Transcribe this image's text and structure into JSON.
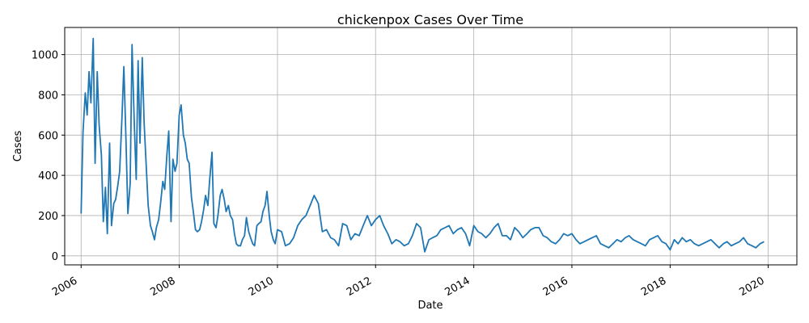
{
  "chart_data": {
    "type": "line",
    "title": "chickenpox Cases Over Time",
    "xlabel": "Date",
    "ylabel": "Cases",
    "xlim": [
      "2005-09-01",
      "2020-08-01"
    ],
    "ylim": [
      -45,
      1135
    ],
    "x_ticks": [
      "2006-01-01",
      "2008-01-01",
      "2010-01-01",
      "2012-01-01",
      "2014-01-01",
      "2016-01-01",
      "2018-01-01",
      "2020-01-01"
    ],
    "x_tick_labels": [
      "2006",
      "2008",
      "2010",
      "2012",
      "2014",
      "2016",
      "2018",
      "2020"
    ],
    "y_ticks": [
      0,
      200,
      400,
      600,
      800,
      1000
    ],
    "y_tick_labels": [
      "0",
      "200",
      "400",
      "600",
      "800",
      "1000"
    ],
    "grid": true,
    "line_color": "#1f77b4",
    "series": [
      {
        "x": [
          "2006-01-01",
          "2006-01-15",
          "2006-02-01",
          "2006-02-15",
          "2006-03-01",
          "2006-03-15",
          "2006-04-01",
          "2006-04-15",
          "2006-05-01",
          "2006-05-15",
          "2006-06-01",
          "2006-06-15",
          "2006-07-01",
          "2006-07-15",
          "2006-08-01",
          "2006-08-15",
          "2006-09-01",
          "2006-09-15",
          "2006-10-01",
          "2006-10-15",
          "2006-11-01",
          "2006-11-15",
          "2006-12-01",
          "2006-12-15",
          "2007-01-01",
          "2007-01-15",
          "2007-02-01",
          "2007-02-15",
          "2007-03-01",
          "2007-03-15",
          "2007-04-01",
          "2007-04-15",
          "2007-05-01",
          "2007-05-15",
          "2007-06-01",
          "2007-06-15",
          "2007-07-01",
          "2007-07-15",
          "2007-08-01",
          "2007-08-15",
          "2007-09-01",
          "2007-09-15",
          "2007-10-01",
          "2007-10-15",
          "2007-11-01",
          "2007-11-15",
          "2007-12-01",
          "2007-12-15",
          "2008-01-01",
          "2008-01-15",
          "2008-02-01",
          "2008-02-15",
          "2008-03-01",
          "2008-03-15",
          "2008-04-01",
          "2008-04-15",
          "2008-05-01",
          "2008-05-15",
          "2008-06-01",
          "2008-06-15",
          "2008-07-01",
          "2008-07-15",
          "2008-08-01",
          "2008-08-15",
          "2008-09-01",
          "2008-09-15",
          "2008-10-01",
          "2008-10-15",
          "2008-11-01",
          "2008-11-15",
          "2008-12-01",
          "2008-12-15",
          "2009-01-01",
          "2009-01-15",
          "2009-02-01",
          "2009-02-15",
          "2009-03-01",
          "2009-03-15",
          "2009-04-01",
          "2009-04-15",
          "2009-05-01",
          "2009-05-15",
          "2009-06-01",
          "2009-06-15",
          "2009-07-01",
          "2009-07-15",
          "2009-08-01",
          "2009-08-15",
          "2009-09-01",
          "2009-09-15",
          "2009-10-01",
          "2009-10-15",
          "2009-11-01",
          "2009-11-15",
          "2009-12-01",
          "2009-12-15",
          "2010-01-01",
          "2010-02-01",
          "2010-03-01",
          "2010-04-01",
          "2010-05-01",
          "2010-06-01",
          "2010-07-01",
          "2010-08-01",
          "2010-09-01",
          "2010-10-01",
          "2010-11-01",
          "2010-12-01",
          "2011-01-01",
          "2011-02-01",
          "2011-03-01",
          "2011-04-01",
          "2011-05-01",
          "2011-06-01",
          "2011-07-01",
          "2011-08-01",
          "2011-09-01",
          "2011-10-01",
          "2011-11-01",
          "2011-12-01",
          "2012-01-01",
          "2012-02-01",
          "2012-03-01",
          "2012-04-01",
          "2012-05-01",
          "2012-06-01",
          "2012-07-01",
          "2012-08-01",
          "2012-09-01",
          "2012-10-01",
          "2012-11-01",
          "2012-12-01",
          "2013-01-01",
          "2013-02-01",
          "2013-03-01",
          "2013-04-01",
          "2013-05-01",
          "2013-06-01",
          "2013-07-01",
          "2013-08-01",
          "2013-09-01",
          "2013-10-01",
          "2013-11-01",
          "2013-12-01",
          "2014-01-01",
          "2014-02-01",
          "2014-03-01",
          "2014-04-01",
          "2014-05-01",
          "2014-06-01",
          "2014-07-01",
          "2014-08-01",
          "2014-09-01",
          "2014-10-01",
          "2014-11-01",
          "2014-12-01",
          "2015-01-01",
          "2015-02-01",
          "2015-03-01",
          "2015-04-01",
          "2015-05-01",
          "2015-06-01",
          "2015-07-01",
          "2015-08-01",
          "2015-09-01",
          "2015-10-01",
          "2015-11-01",
          "2015-12-01",
          "2016-01-01",
          "2016-02-01",
          "2016-03-01",
          "2016-04-01",
          "2016-05-01",
          "2016-06-01",
          "2016-07-01",
          "2016-08-01",
          "2016-09-01",
          "2016-10-01",
          "2016-11-01",
          "2016-12-01",
          "2017-01-01",
          "2017-02-01",
          "2017-03-01",
          "2017-04-01",
          "2017-05-01",
          "2017-06-01",
          "2017-07-01",
          "2017-08-01",
          "2017-09-01",
          "2017-10-01",
          "2017-11-01",
          "2017-12-01",
          "2018-01-01",
          "2018-02-01",
          "2018-03-01",
          "2018-04-01",
          "2018-05-01",
          "2018-06-01",
          "2018-07-01",
          "2018-08-01",
          "2018-09-01",
          "2018-10-01",
          "2018-11-01",
          "2018-12-01",
          "2019-01-01",
          "2019-02-01",
          "2019-03-01",
          "2019-04-01",
          "2019-05-01",
          "2019-06-01",
          "2019-07-01",
          "2019-08-01",
          "2019-09-01",
          "2019-10-01",
          "2019-11-01",
          "2019-12-01"
        ],
        "y": [
          210,
          615,
          810,
          700,
          915,
          760,
          1080,
          460,
          915,
          650,
          500,
          170,
          340,
          110,
          560,
          150,
          260,
          280,
          350,
          420,
          690,
          940,
          570,
          210,
          360,
          1050,
          650,
          380,
          970,
          560,
          985,
          660,
          440,
          250,
          150,
          120,
          80,
          140,
          180,
          260,
          370,
          330,
          500,
          620,
          170,
          480,
          420,
          460,
          700,
          750,
          600,
          560,
          480,
          460,
          290,
          220,
          130,
          120,
          130,
          170,
          230,
          300,
          250,
          380,
          515,
          160,
          140,
          200,
          300,
          330,
          280,
          220,
          250,
          200,
          180,
          110,
          60,
          50,
          50,
          80,
          100,
          190,
          120,
          90,
          60,
          50,
          150,
          160,
          170,
          220,
          250,
          320,
          200,
          120,
          80,
          60,
          130,
          120,
          50,
          60,
          90,
          150,
          180,
          200,
          250,
          300,
          260,
          120,
          130,
          90,
          80,
          50,
          160,
          150,
          80,
          110,
          100,
          150,
          200,
          150,
          180,
          200,
          150,
          110,
          60,
          80,
          70,
          50,
          60,
          100,
          160,
          140,
          20,
          80,
          90,
          100,
          130,
          140,
          150,
          110,
          130,
          140,
          110,
          50,
          150,
          120,
          110,
          90,
          110,
          140,
          160,
          100,
          100,
          80,
          140,
          120,
          90,
          110,
          130,
          140,
          140,
          100,
          90,
          70,
          60,
          80,
          110,
          100,
          110,
          80,
          60,
          70,
          80,
          90,
          100,
          60,
          50,
          40,
          60,
          80,
          70,
          90,
          100,
          80,
          70,
          60,
          50,
          80,
          90,
          100,
          70,
          60,
          30,
          80,
          60,
          90,
          70,
          80,
          60,
          50,
          60,
          70,
          80,
          60,
          40,
          60,
          70,
          50,
          60,
          70,
          90,
          60,
          50,
          40,
          60,
          70
        ]
      }
    ]
  }
}
